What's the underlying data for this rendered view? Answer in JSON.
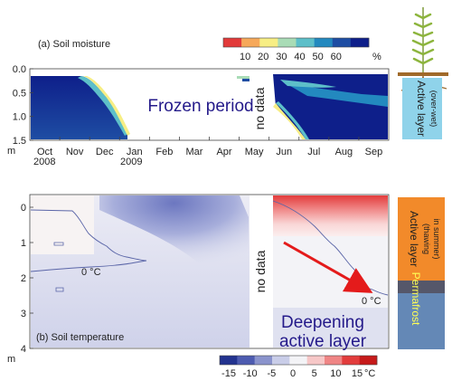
{
  "chart_data": [
    {
      "type": "heatmap",
      "title": "(a) Soil moisture",
      "ylabel": "m",
      "ylim": [
        0.0,
        1.5
      ],
      "yticks": [
        "0.0",
        "0.5",
        "1.0",
        "1.5"
      ],
      "months": [
        "Oct",
        "Nov",
        "Dec",
        "Jan",
        "Feb",
        "Mar",
        "Apr",
        "May",
        "Jun",
        "Jul",
        "Aug",
        "Sep"
      ],
      "years": [
        "2008",
        "2009"
      ],
      "colorbar": {
        "ticks": [
          "10",
          "20",
          "30",
          "40",
          "50",
          "60"
        ],
        "unit": "%",
        "colors": [
          "#e23a3a",
          "#f6a85a",
          "#f7ee84",
          "#a9dcb6",
          "#5dbfc9",
          "#2389bf",
          "#1e4da3",
          "#0e1f8a"
        ]
      },
      "annotations": {
        "frozen": "Frozen period",
        "nodata": "no data"
      }
    },
    {
      "type": "heatmap",
      "title": "(b) Soil temperature",
      "ylabel": "m",
      "ylim": [
        0,
        4
      ],
      "yticks": [
        "0",
        "1",
        "2",
        "3",
        "4"
      ],
      "colorbar": {
        "ticks": [
          "-15",
          "-10",
          "-5",
          "0",
          "5",
          "10",
          "15"
        ],
        "unit": "°C",
        "colors": [
          "#23338f",
          "#4d5bb0",
          "#8a93cc",
          "#c9cde8",
          "#f3f3f6",
          "#f6c7c7",
          "#ef8585",
          "#e23c3c",
          "#c61a1a"
        ]
      },
      "annotations": {
        "zero_left": "0 °C",
        "zero_right": "0 °C",
        "nodata": "no data",
        "deepening_1": "Deepening",
        "deepening_2": "active layer"
      }
    }
  ],
  "side_labels": {
    "active_top": "Active layer",
    "active_top_note": "(over-wet)",
    "active_bottom": "Active layer",
    "active_bottom_note_1": "(thawing",
    "active_bottom_note_2": "in summer)",
    "permafrost": "Permafrost"
  },
  "colors": {
    "active_top_bg": "#8fd3ea",
    "active_bottom_bg": "#f28a2a",
    "permafrost_bg": "#6488b6",
    "separator_bg": "#55576a",
    "permafrost_text": "#ffff55",
    "label_blue": "#241a8a",
    "arrow": "#e41b1b",
    "zero_line": "#5b66a8"
  }
}
